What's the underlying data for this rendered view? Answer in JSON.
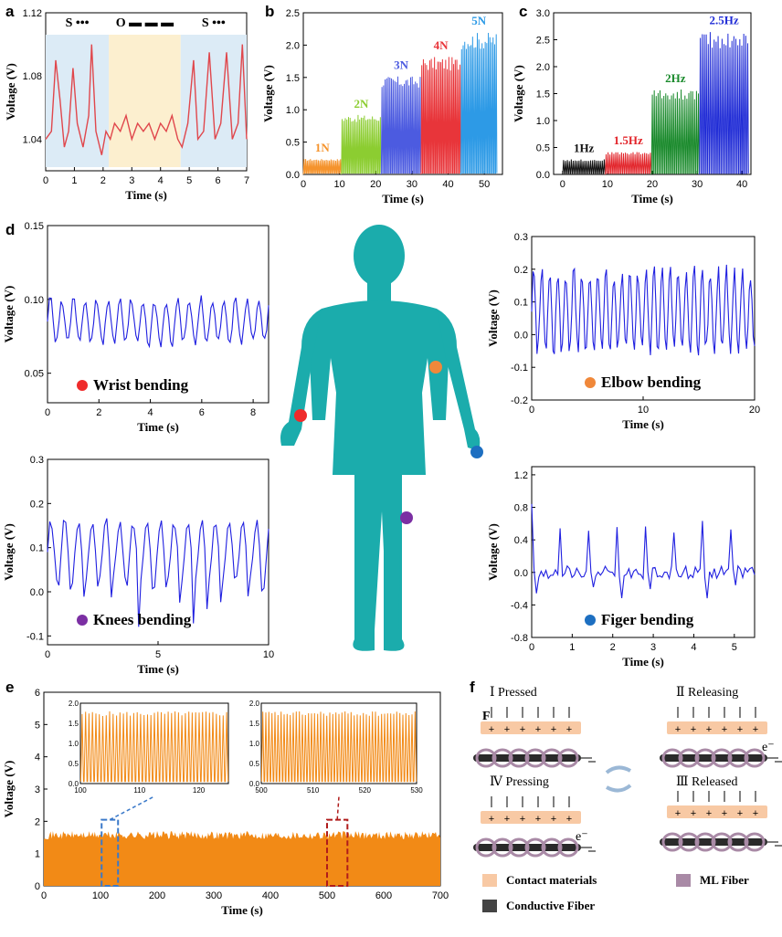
{
  "panel_labels": [
    "a",
    "b",
    "c",
    "d",
    "e",
    "f"
  ],
  "colors": {
    "red_trace": "#e0474c",
    "blue_trace": "#1f1fe0",
    "orange_fill": "#f28a16",
    "body": "#1bacac",
    "region_blue": "#dcebf6",
    "region_yellow": "#fcefcf"
  },
  "chart_data": [
    {
      "id": "a",
      "type": "line",
      "xlabel": "Time (s)",
      "ylabel": "Voltage (V)",
      "xlim": [
        0,
        7
      ],
      "ylim": [
        1.02,
        1.12
      ],
      "xticks": [
        "0",
        "1",
        "2",
        "3",
        "4",
        "5",
        "6",
        "7"
      ],
      "yticks": [
        "1.04",
        "1.08",
        "1.12"
      ],
      "regions": [
        {
          "label": "S •••",
          "from": 0,
          "to": 2.2
        },
        {
          "label": "O ▬ ▬ ▬",
          "from": 2.2,
          "to": 4.7
        },
        {
          "label": "S •••",
          "from": 4.7,
          "to": 7
        }
      ],
      "x": [
        0,
        0.2,
        0.35,
        0.5,
        0.65,
        0.8,
        0.95,
        1.1,
        1.3,
        1.5,
        1.6,
        1.75,
        1.95,
        2.1,
        2.25,
        2.4,
        2.6,
        2.8,
        3.0,
        3.2,
        3.4,
        3.6,
        3.8,
        4.0,
        4.2,
        4.4,
        4.6,
        4.75,
        4.95,
        5.15,
        5.3,
        5.5,
        5.7,
        5.9,
        6.1,
        6.3,
        6.5,
        6.7,
        6.85,
        7.0
      ],
      "y": [
        1.04,
        1.045,
        1.09,
        1.065,
        1.035,
        1.045,
        1.085,
        1.05,
        1.035,
        1.055,
        1.1,
        1.045,
        1.03,
        1.045,
        1.04,
        1.05,
        1.045,
        1.055,
        1.04,
        1.05,
        1.045,
        1.05,
        1.04,
        1.05,
        1.045,
        1.055,
        1.04,
        1.035,
        1.05,
        1.09,
        1.04,
        1.045,
        1.095,
        1.04,
        1.05,
        1.095,
        1.04,
        1.05,
        1.1,
        1.04
      ]
    },
    {
      "id": "b",
      "type": "area",
      "xlabel": "Time (s)",
      "ylabel": "Voltage (V)",
      "xlim": [
        0,
        55
      ],
      "ylim": [
        0,
        2.5
      ],
      "xticks": [
        "0",
        "10",
        "20",
        "30",
        "40",
        "50"
      ],
      "yticks": [
        "0.0",
        "0.5",
        "1.0",
        "1.5",
        "2.0",
        "2.5"
      ],
      "series": [
        {
          "name": "1N",
          "from": 0,
          "to": 10.5,
          "amp": 0.24,
          "color": "#f5932c"
        },
        {
          "name": "2N",
          "from": 10.5,
          "to": 21.5,
          "amp": 0.92,
          "color": "#8ccd31"
        },
        {
          "name": "3N",
          "from": 21.5,
          "to": 32.5,
          "amp": 1.52,
          "color": "#4c5be0"
        },
        {
          "name": "4N",
          "from": 32.5,
          "to": 43.5,
          "amp": 1.82,
          "color": "#e8353a"
        },
        {
          "name": "5N",
          "from": 43.5,
          "to": 53.5,
          "amp": 2.2,
          "color": "#2d9ae6"
        }
      ]
    },
    {
      "id": "c",
      "type": "area",
      "xlabel": "Time (s)",
      "ylabel": "Voltage (V)",
      "xlim": [
        -2,
        42
      ],
      "ylim": [
        0,
        3.0
      ],
      "xticks": [
        "0",
        "10",
        "20",
        "30",
        "40"
      ],
      "yticks": [
        "0.0",
        "0.5",
        "1.0",
        "1.5",
        "2.0",
        "2.5",
        "3.0"
      ],
      "series": [
        {
          "name": "1Hz",
          "from": 0,
          "to": 9.5,
          "amp": 0.28,
          "color": "#111111"
        },
        {
          "name": "1.5Hz",
          "from": 9.5,
          "to": 19.8,
          "amp": 0.42,
          "color": "#e2242a"
        },
        {
          "name": "2Hz",
          "from": 19.8,
          "to": 30.5,
          "amp": 1.58,
          "color": "#1a8a2c"
        },
        {
          "name": "2.5Hz",
          "from": 30.5,
          "to": 41.5,
          "amp": 2.65,
          "color": "#1f2bd6"
        }
      ]
    },
    {
      "id": "d1",
      "type": "line",
      "title": "Wrist bending",
      "xlabel": "Time (s)",
      "ylabel": "Voltage (V)",
      "xlim": [
        0,
        8.6
      ],
      "ylim": [
        0.03,
        0.15
      ],
      "xticks": [
        "0",
        "2",
        "4",
        "6",
        "8"
      ],
      "yticks": [
        "0.05",
        "0.10",
        "0.15"
      ],
      "base": 0.085,
      "amp": 0.015,
      "period": 0.45
    },
    {
      "id": "d2",
      "type": "line",
      "title": "Elbow bending",
      "xlabel": "Time (s)",
      "ylabel": "Voltage (V)",
      "xlim": [
        0,
        20
      ],
      "ylim": [
        -0.2,
        0.3
      ],
      "xticks": [
        "0",
        "10",
        "20"
      ],
      "yticks": [
        "-0.2",
        "-0.1",
        "0.0",
        "0.1",
        "0.2",
        "0.3"
      ],
      "base": 0.07,
      "amp": 0.12,
      "period": 0.72
    },
    {
      "id": "d3",
      "type": "line",
      "title": "Knees bending",
      "xlabel": "Time (s)",
      "ylabel": "Voltage (V)",
      "xlim": [
        0,
        10
      ],
      "ylim": [
        -0.12,
        0.3
      ],
      "xticks": [
        "0",
        "5",
        "10"
      ],
      "yticks": [
        "-0.1",
        "0.0",
        "0.1",
        "0.2",
        "0.3"
      ],
      "base": 0.09,
      "amp": 0.07,
      "period": 0.62
    },
    {
      "id": "d4",
      "type": "line",
      "title": "Figer bending",
      "xlabel": "Time (s)",
      "ylabel": "Voltage (V)",
      "xlim": [
        0,
        5.5
      ],
      "ylim": [
        -0.8,
        1.3
      ],
      "xticks": [
        "0",
        "1",
        "2",
        "3",
        "4",
        "5"
      ],
      "yticks": [
        "-0.8",
        "-0.4",
        "0.0",
        "0.4",
        "0.8",
        "1.2"
      ],
      "base": 0.0,
      "amp": 0.08,
      "period": 0.35
    },
    {
      "id": "e",
      "type": "area",
      "xlabel": "Time (s)",
      "ylabel": "Voltage (V)",
      "xlim": [
        0,
        700
      ],
      "ylim": [
        0,
        6
      ],
      "xticks": [
        "0",
        "100",
        "200",
        "300",
        "400",
        "500",
        "600",
        "700"
      ],
      "yticks": [
        "0",
        "1",
        "2",
        "3",
        "4",
        "5",
        "6"
      ],
      "level": 1.7,
      "insets": [
        {
          "xlim": [
            100,
            125
          ],
          "ylim": [
            0,
            2.0
          ],
          "xticks": [
            "100",
            "110",
            "120"
          ],
          "yticks": [
            "0.0",
            "0.5",
            "1.0",
            "1.5",
            "2.0"
          ],
          "box": [
            102,
            131
          ]
        },
        {
          "xlim": [
            500,
            530
          ],
          "ylim": [
            0,
            2.0
          ],
          "xticks": [
            "500",
            "510",
            "520",
            "530"
          ],
          "yticks": [
            "0.0",
            "0.5",
            "1.0",
            "1.5",
            "2.0"
          ],
          "box": [
            500,
            536
          ]
        }
      ]
    }
  ],
  "panel_f": {
    "steps": [
      {
        "num": "Ⅰ",
        "label": "Pressed"
      },
      {
        "num": "Ⅱ",
        "label": "Releasing"
      },
      {
        "num": "Ⅳ",
        "label": "Pressing"
      },
      {
        "num": "Ⅲ",
        "label": "Released"
      }
    ],
    "force": "F",
    "electron": "e⁻",
    "legend": [
      "Contact materials",
      "ML Fiber",
      "Conductive Fiber"
    ],
    "legend_colors": [
      "#f8c9a4",
      "#a98aa6",
      "#444444"
    ]
  }
}
